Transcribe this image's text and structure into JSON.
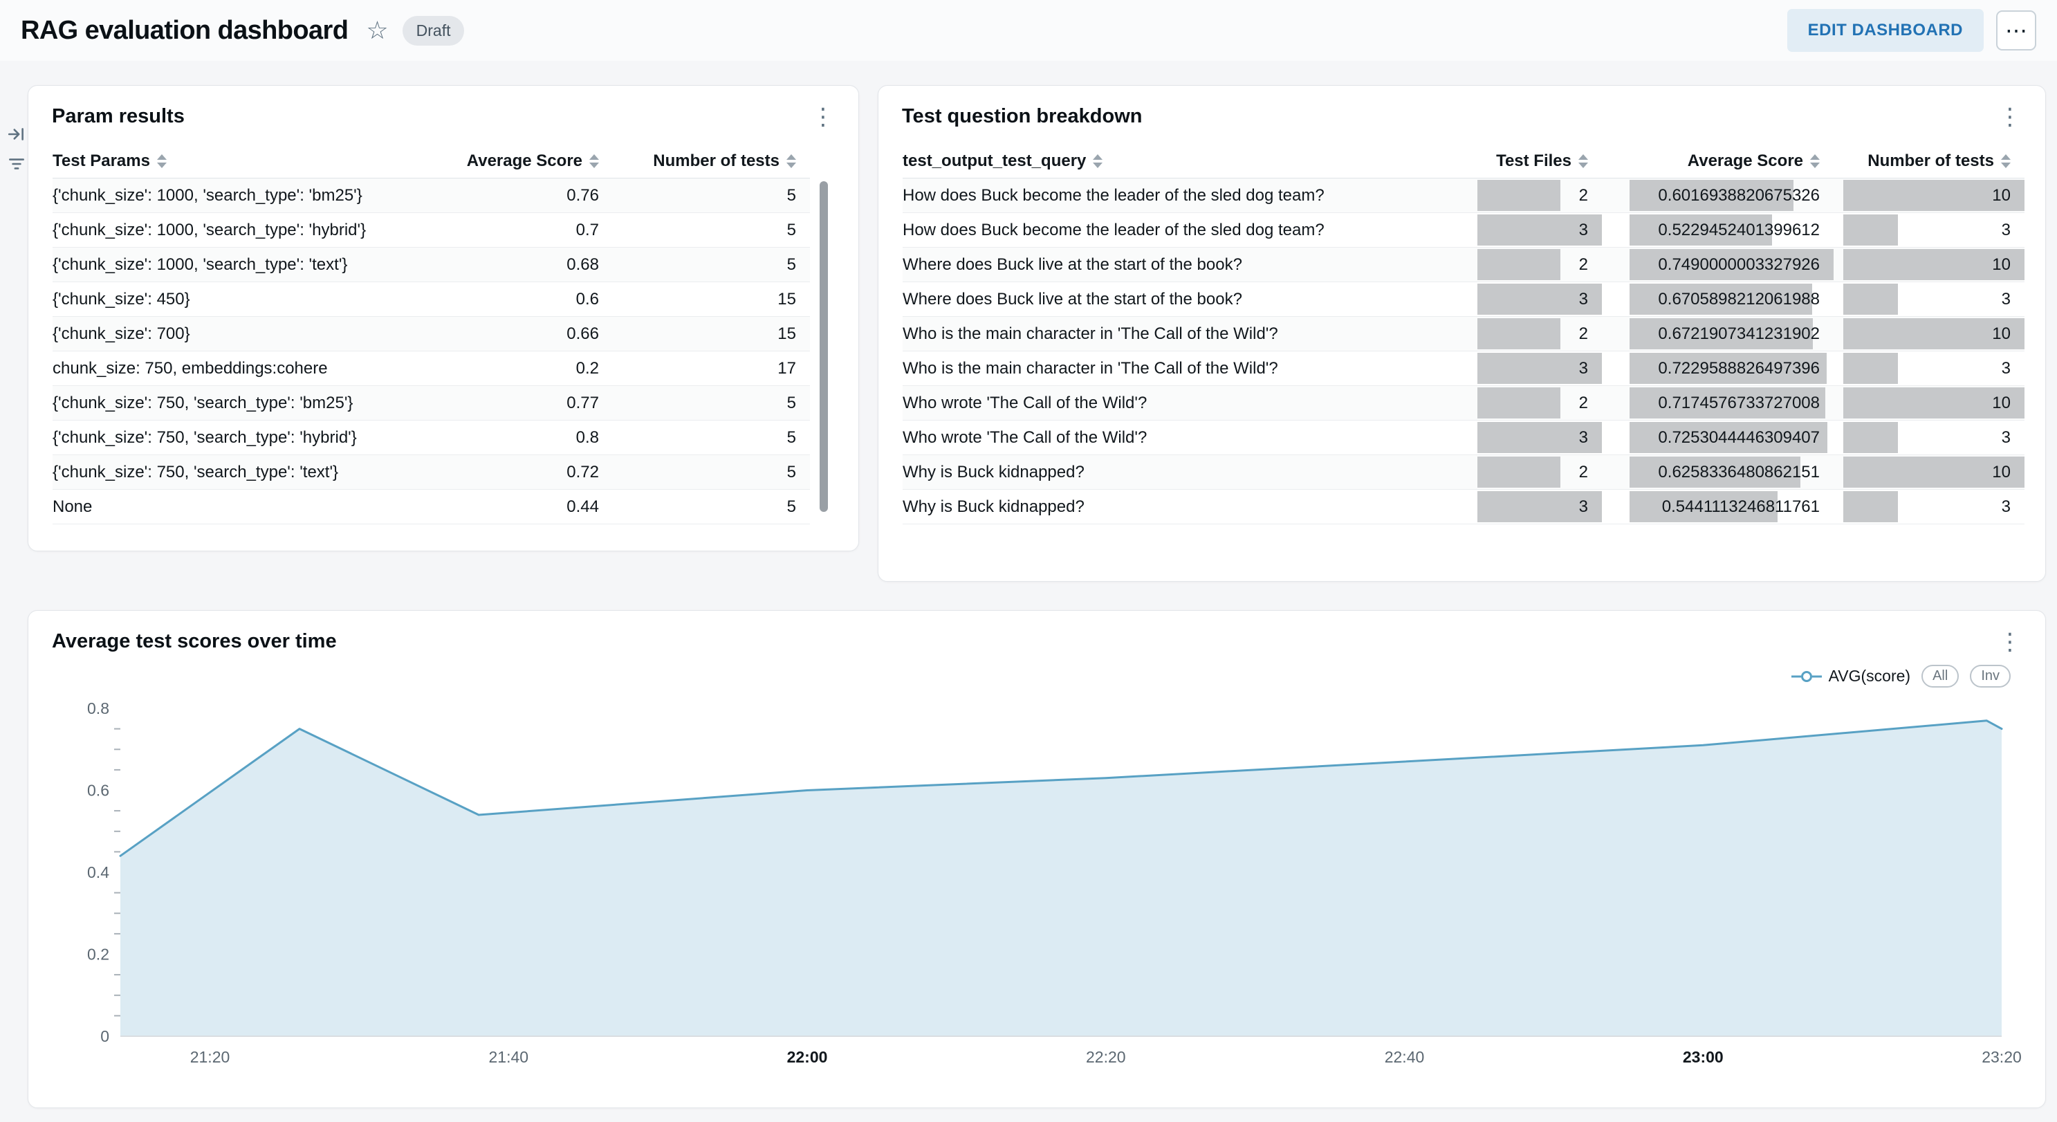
{
  "header": {
    "title": "RAG evaluation dashboard",
    "badge": "Draft",
    "edit_button": "EDIT DASHBOARD"
  },
  "icons": {
    "star": "☆",
    "kebab": "⋮",
    "ellipsis": "⋯"
  },
  "param_results": {
    "title": "Param results",
    "columns": [
      "Test Params",
      "Average Score",
      "Number of tests"
    ],
    "rows": [
      {
        "params": "{'chunk_size': 1000, 'search_type': 'bm25'}",
        "avg": "0.76",
        "n": "5"
      },
      {
        "params": "{'chunk_size': 1000, 'search_type': 'hybrid'}",
        "avg": "0.7",
        "n": "5"
      },
      {
        "params": "{'chunk_size': 1000, 'search_type': 'text'}",
        "avg": "0.68",
        "n": "5"
      },
      {
        "params": "{'chunk_size': 450}",
        "avg": "0.6",
        "n": "15"
      },
      {
        "params": "{'chunk_size': 700}",
        "avg": "0.66",
        "n": "15"
      },
      {
        "params": "chunk_size: 750, embeddings:cohere",
        "avg": "0.2",
        "n": "17"
      },
      {
        "params": "{'chunk_size': 750, 'search_type': 'bm25'}",
        "avg": "0.77",
        "n": "5"
      },
      {
        "params": "{'chunk_size': 750, 'search_type': 'hybrid'}",
        "avg": "0.8",
        "n": "5"
      },
      {
        "params": "{'chunk_size': 750, 'search_type': 'text'}",
        "avg": "0.72",
        "n": "5"
      },
      {
        "params": "None",
        "avg": "0.44",
        "n": "5"
      }
    ]
  },
  "question_breakdown": {
    "title": "Test question breakdown",
    "columns": [
      "test_output_test_query",
      "Test Files",
      "Average Score",
      "Number of tests"
    ],
    "rows": [
      {
        "query": "How does Buck become the leader of the sled dog team?",
        "files": "2",
        "avg": "0.6016938820675326",
        "tests": "10"
      },
      {
        "query": "How does Buck become the leader of the sled dog team?",
        "files": "3",
        "avg": "0.5229452401399612",
        "tests": "3"
      },
      {
        "query": "Where does Buck live at the start of the book?",
        "files": "2",
        "avg": "0.7490000003327926",
        "tests": "10"
      },
      {
        "query": "Where does Buck live at the start of the book?",
        "files": "3",
        "avg": "0.6705898212061988",
        "tests": "3"
      },
      {
        "query": "Who is the main character in 'The Call of the Wild'?",
        "files": "2",
        "avg": "0.6721907341231902",
        "tests": "10"
      },
      {
        "query": "Who is the main character in 'The Call of the Wild'?",
        "files": "3",
        "avg": "0.7229588826497396",
        "tests": "3"
      },
      {
        "query": "Who wrote 'The Call of the Wild'?",
        "files": "2",
        "avg": "0.7174576733727008",
        "tests": "10"
      },
      {
        "query": "Who wrote 'The Call of the Wild'?",
        "files": "3",
        "avg": "0.7253044446309407",
        "tests": "3"
      },
      {
        "query": "Why is Buck kidnapped?",
        "files": "2",
        "avg": "0.6258336480862151",
        "tests": "10"
      },
      {
        "query": "Why is Buck kidnapped?",
        "files": "3",
        "avg": "0.5441113246811761",
        "tests": "3"
      }
    ]
  },
  "chart": {
    "title": "Average test scores over time",
    "legend": {
      "series": "AVG(score)",
      "all": "All",
      "inv": "Inv"
    },
    "chart_data": {
      "type": "area",
      "title": "Average test scores over time",
      "series": [
        {
          "name": "AVG(score)",
          "points": [
            [
              "21:14",
              0.44
            ],
            [
              "21:26",
              0.75
            ],
            [
              "21:38",
              0.54
            ],
            [
              "22:00",
              0.6
            ],
            [
              "22:20",
              0.63
            ],
            [
              "22:40",
              0.67
            ],
            [
              "23:00",
              0.71
            ],
            [
              "23:19",
              0.77
            ],
            [
              "23:20",
              0.75
            ]
          ]
        }
      ],
      "xlim": [
        "21:14",
        "23:20"
      ],
      "x_ticks": [
        "21:20",
        "21:40",
        "22:00",
        "22:20",
        "22:40",
        "23:00",
        "23:20"
      ],
      "x_ticks_bold": [
        "22:00",
        "23:00"
      ],
      "ylim": [
        0,
        0.8
      ],
      "y_ticks": [
        0,
        0.2,
        0.4,
        0.6,
        0.8
      ],
      "y_minor_step": 0.05,
      "line_color": "#58a1c4",
      "fill_color": "#dcebf3",
      "legend_position": "top-right",
      "grid": false
    }
  }
}
